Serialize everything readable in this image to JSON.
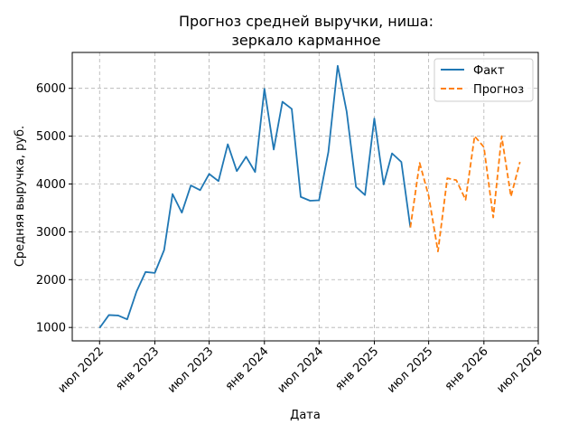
{
  "chart_data": {
    "type": "line",
    "title": [
      "Прогноз средней выручки, ниша:",
      "зеркало карманное"
    ],
    "xlabel": "Дата",
    "ylabel": "Средняя выручка, руб.",
    "x_ticks": [
      {
        "date": "2022-07-01",
        "label": "июл 2022"
      },
      {
        "date": "2023-01-01",
        "label": "янв 2023"
      },
      {
        "date": "2023-07-01",
        "label": "июл 2023"
      },
      {
        "date": "2024-01-01",
        "label": "янв 2024"
      },
      {
        "date": "2024-07-01",
        "label": "июл 2024"
      },
      {
        "date": "2025-01-01",
        "label": "янв 2025"
      },
      {
        "date": "2025-07-01",
        "label": "июл 2025"
      },
      {
        "date": "2026-01-01",
        "label": "янв 2026"
      },
      {
        "date": "2026-07-01",
        "label": "июл 2026"
      }
    ],
    "y_ticks": [
      1000,
      2000,
      3000,
      4000,
      5000,
      6000
    ],
    "xlim": [
      "2022-04-01",
      "2026-07-01"
    ],
    "ylim": [
      720,
      6750
    ],
    "grid": true,
    "legend_position": "top-right",
    "series": [
      {
        "name": "Факт",
        "color": "#1f77b4",
        "style": "solid",
        "x": [
          "2022-07-01",
          "2022-08-01",
          "2022-09-01",
          "2022-10-01",
          "2022-11-01",
          "2022-12-01",
          "2023-01-01",
          "2023-02-01",
          "2023-03-01",
          "2023-04-01",
          "2023-05-01",
          "2023-06-01",
          "2023-07-01",
          "2023-08-01",
          "2023-09-01",
          "2023-10-01",
          "2023-11-01",
          "2023-12-01",
          "2024-01-01",
          "2024-02-01",
          "2024-03-01",
          "2024-04-01",
          "2024-05-01",
          "2024-06-01",
          "2024-07-01",
          "2024-08-01",
          "2024-09-01",
          "2024-10-01",
          "2024-11-01",
          "2024-12-01",
          "2025-01-01",
          "2025-02-01",
          "2025-03-01",
          "2025-04-01",
          "2025-05-01"
        ],
        "values": [
          990,
          1260,
          1250,
          1170,
          1750,
          2160,
          2140,
          2620,
          3790,
          3400,
          3970,
          3870,
          4210,
          4060,
          4830,
          4270,
          4570,
          4250,
          5990,
          4720,
          5720,
          5570,
          3730,
          3650,
          3660,
          4670,
          6470,
          5510,
          3940,
          3770,
          5370,
          3990,
          4640,
          4460,
          3090
        ]
      },
      {
        "name": "Прогноз",
        "color": "#ff7f0e",
        "style": "dashed",
        "x": [
          "2025-05-01",
          "2025-06-01",
          "2025-07-01",
          "2025-08-01",
          "2025-09-01",
          "2025-10-01",
          "2025-11-01",
          "2025-12-01",
          "2026-01-01",
          "2026-02-01",
          "2026-03-01",
          "2026-04-01",
          "2026-05-01"
        ],
        "values": [
          3090,
          4440,
          3750,
          2590,
          4120,
          4080,
          3670,
          5000,
          4770,
          3300,
          5000,
          3740,
          4460
        ]
      }
    ]
  }
}
